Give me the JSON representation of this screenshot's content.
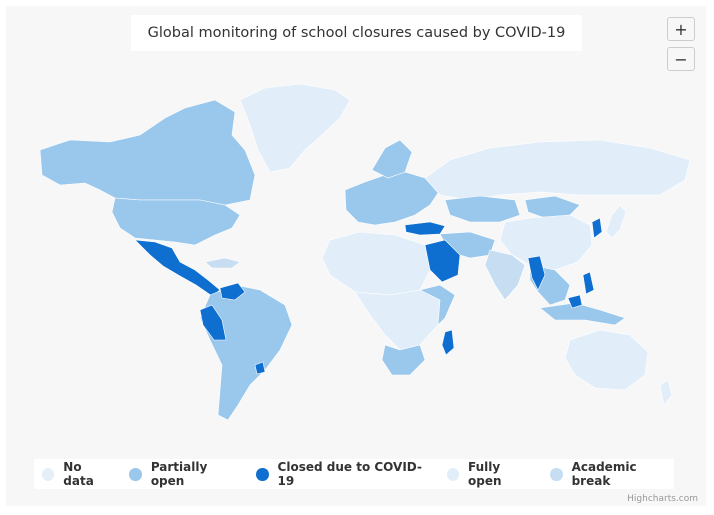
{
  "title": "Global monitoring of school closures caused by COVID-19",
  "zoom": {
    "in_label": "+",
    "out_label": "−"
  },
  "colors": {
    "no_data": "#e6eef7",
    "partially_open": "#9ac7ec",
    "closed": "#0f6fd0",
    "fully_open": "#e1eefa",
    "academic_break": "#c6ddf2",
    "border": "#ffffff"
  },
  "legend": [
    {
      "label": "No data",
      "color": "#e6eef7"
    },
    {
      "label": "Partially open",
      "color": "#9ac7ec"
    },
    {
      "label": "Closed due to COVID-19",
      "color": "#0f6fd0"
    },
    {
      "label": "Fully open",
      "color": "#e1eefa"
    },
    {
      "label": "Academic break",
      "color": "#c6ddf2"
    }
  ],
  "credits": "Highcharts.com"
}
